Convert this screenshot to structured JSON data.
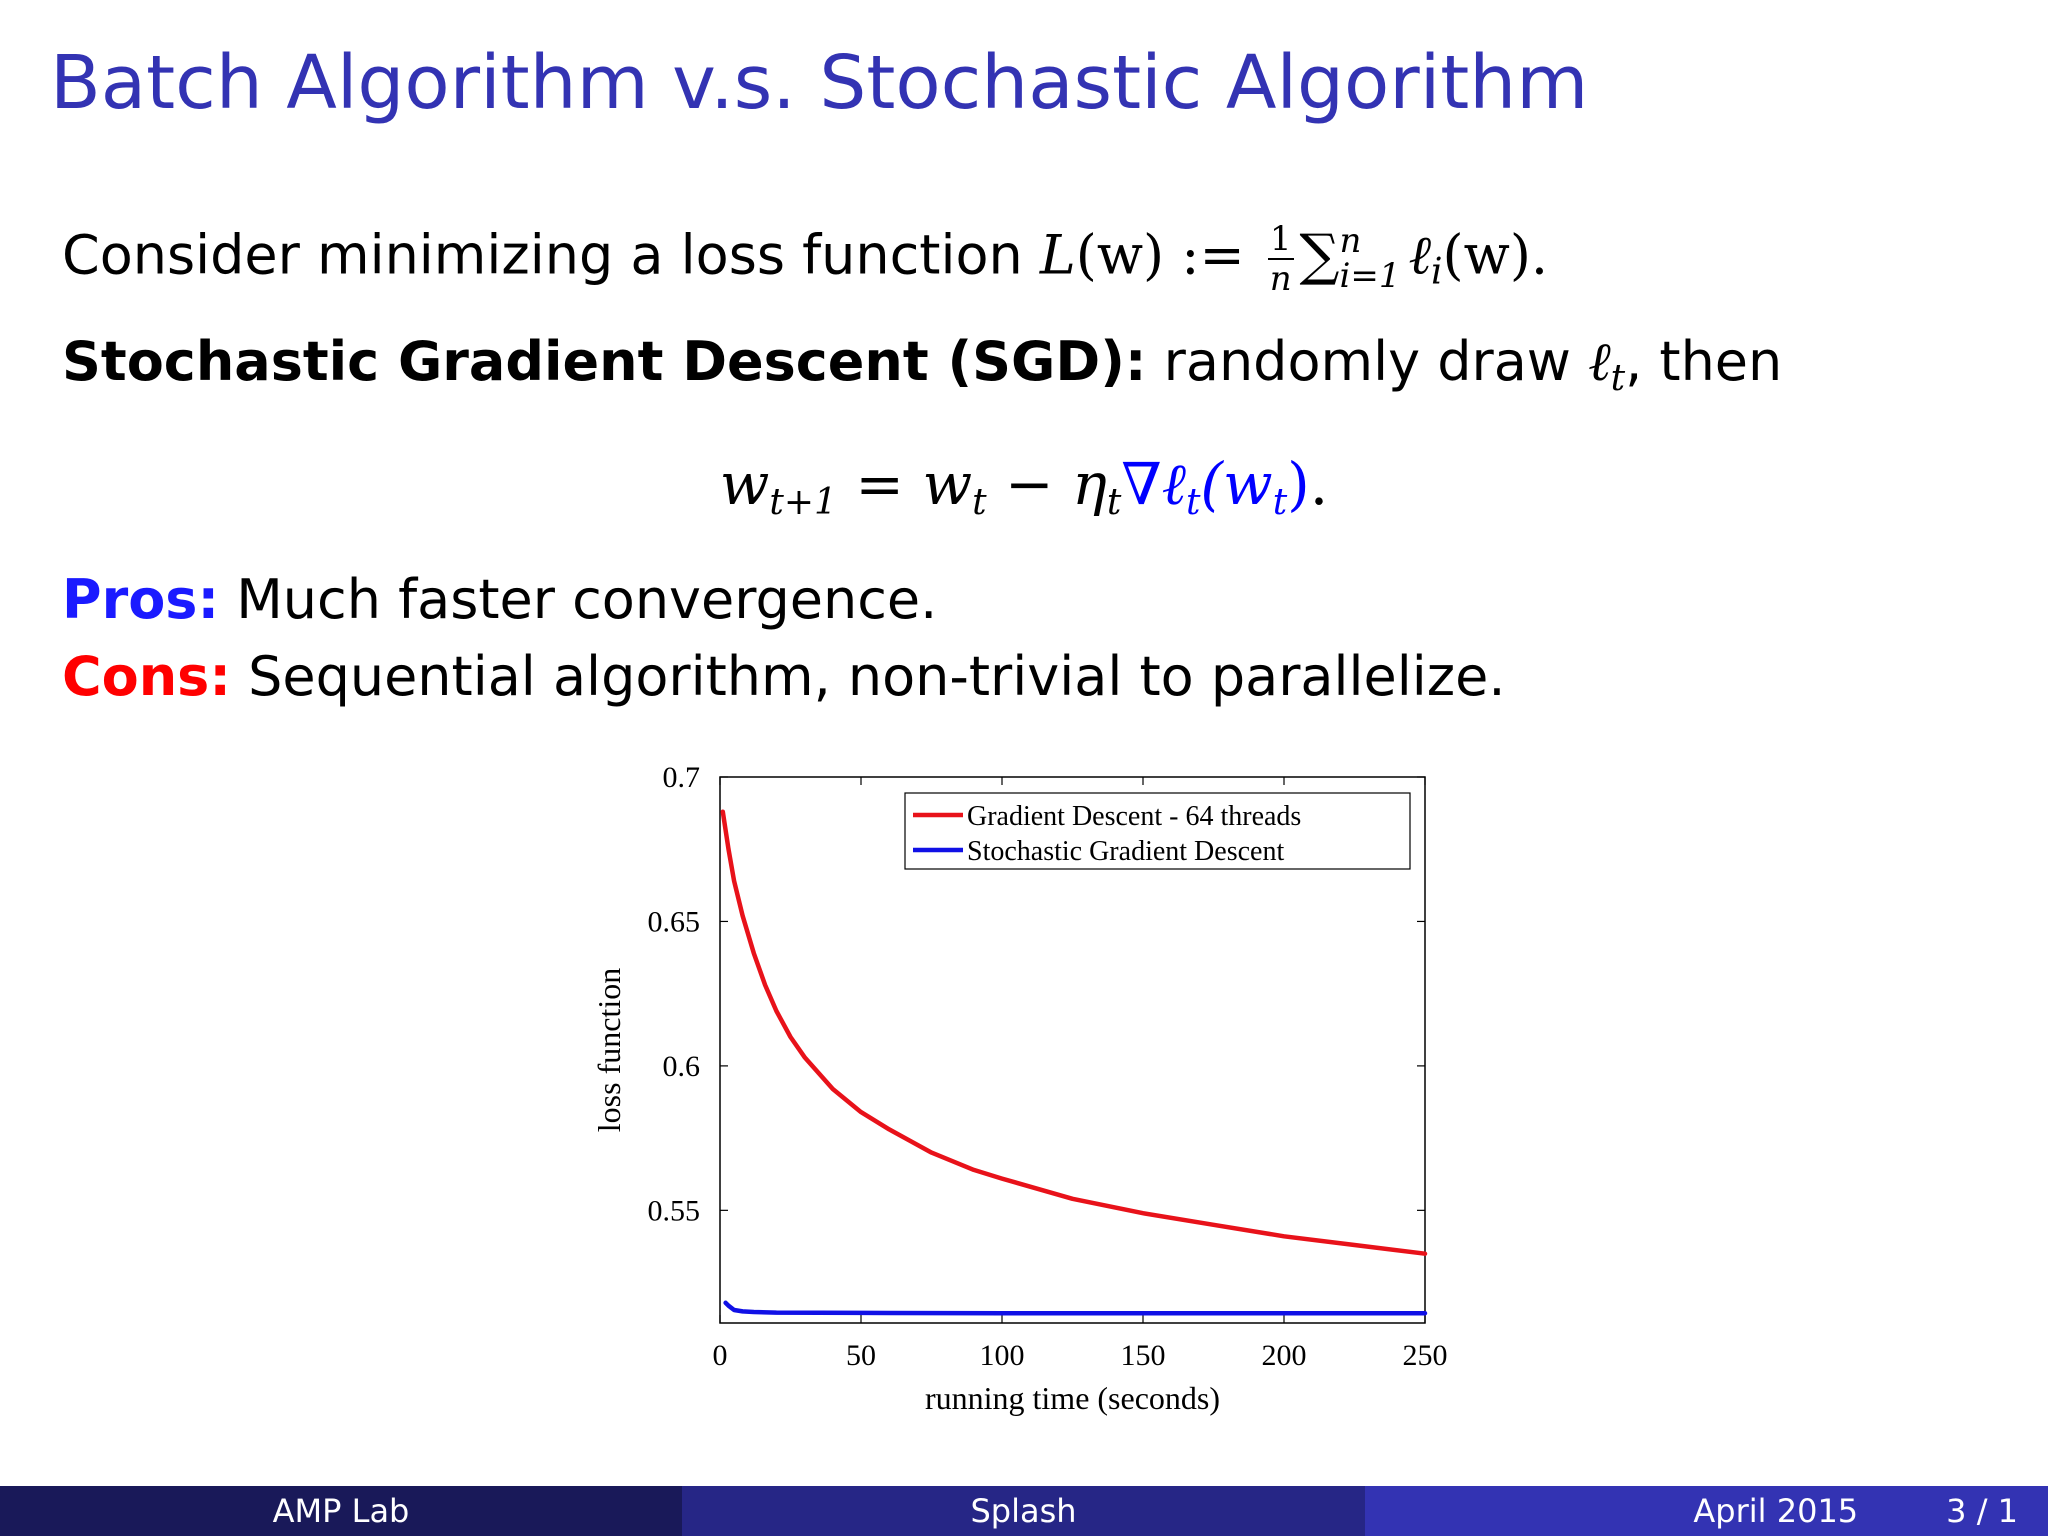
{
  "slide": {
    "title": "Batch Algorithm v.s. Stochastic Algorithm",
    "line1_text": "Consider minimizing a loss function ",
    "line1_math": {
      "lhs": "L(w) :=",
      "frac_num": "1",
      "frac_den": "n",
      "sum_symbol": "∑",
      "sum_upper": "n",
      "sum_lower": "i=1",
      "term": "ℓ",
      "term_sub": "i",
      "term_arg": "(w).",
      "lhs_L": "L",
      "lhs_paren": "(w) :="
    },
    "sgd_label": "Stochastic Gradient Descent (SGD):",
    "sgd_text_a": " randomly draw ",
    "sgd_ell": "ℓ",
    "sgd_ell_sub": "t",
    "sgd_text_b": ", then",
    "update_eq": {
      "w": "w",
      "sub_next": "t+1",
      "eq": " = ",
      "w2": "w",
      "sub_t": "t",
      "minus": " − ",
      "eta": "η",
      "eta_sub": "t",
      "grad": "∇ℓ",
      "grad_sub": "t",
      "arg_open": "(w",
      "arg_sub": "t",
      "arg_close": ")",
      "period": "."
    },
    "pros_label": "Pros:",
    "pros_text": " Much faster convergence.",
    "cons_label": "Cons:",
    "cons_text": " Sequential algorithm, non-trivial to parallelize."
  },
  "chart_data": {
    "type": "line",
    "xlabel": "running time (seconds)",
    "ylabel": "loss function",
    "xlim": [
      0,
      250
    ],
    "ylim": [
      0.511,
      0.7
    ],
    "xticks": [
      0,
      50,
      100,
      150,
      200,
      250
    ],
    "yticks": [
      0.55,
      0.6,
      0.65,
      0.7
    ],
    "ytick_labels": [
      "0.55",
      "0.6",
      "0.65",
      "0.7"
    ],
    "legend_position": "top-right",
    "series": [
      {
        "name": "Gradient Descent - 64 threads",
        "color": "#e8121a",
        "x": [
          1,
          3,
          5,
          8,
          12,
          16,
          20,
          25,
          30,
          40,
          50,
          60,
          75,
          90,
          100,
          125,
          150,
          175,
          200,
          225,
          250
        ],
        "y": [
          0.688,
          0.675,
          0.664,
          0.652,
          0.639,
          0.628,
          0.619,
          0.61,
          0.603,
          0.592,
          0.584,
          0.578,
          0.57,
          0.564,
          0.561,
          0.554,
          0.549,
          0.545,
          0.541,
          0.538,
          0.535
        ]
      },
      {
        "name": "Stochastic Gradient Descent",
        "color": "#1010e6",
        "x": [
          2,
          3,
          5,
          8,
          12,
          20,
          50,
          100,
          150,
          200,
          250
        ],
        "y": [
          0.518,
          0.517,
          0.5155,
          0.515,
          0.5148,
          0.5146,
          0.5145,
          0.5144,
          0.5144,
          0.5144,
          0.5144
        ]
      }
    ]
  },
  "footer": {
    "left": "AMP Lab",
    "center": "Splash",
    "date": "April 2015",
    "page": "3 / 1"
  }
}
